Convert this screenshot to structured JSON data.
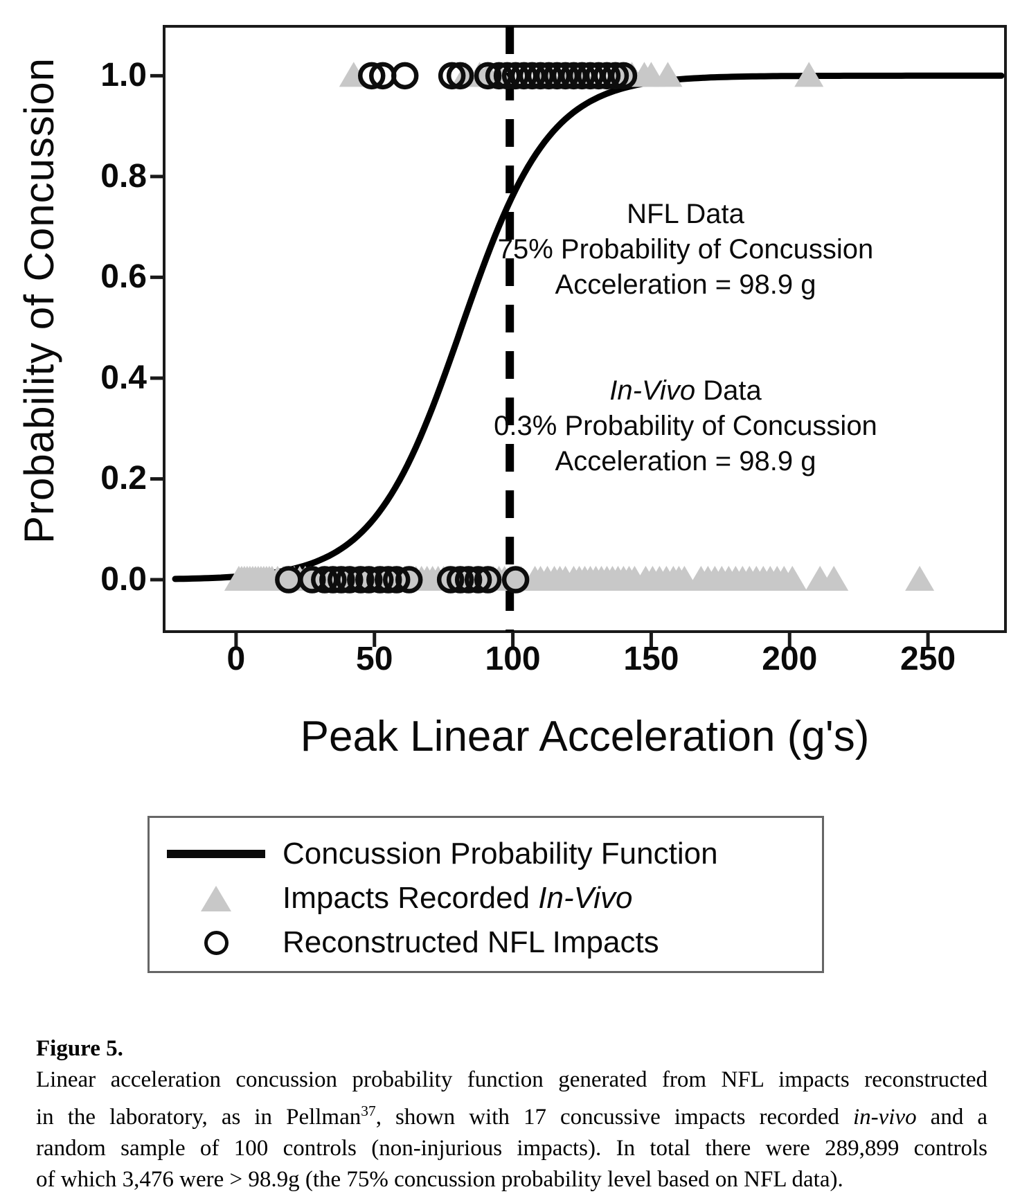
{
  "chart_data": {
    "type": "scatter",
    "xlabel": "Peak Linear Acceleration (g's)",
    "ylabel": "Probability of Concussion",
    "xlim": [
      -26,
      278
    ],
    "ylim": [
      -0.103,
      1.098
    ],
    "x_ticks": [
      0,
      50,
      100,
      150,
      200,
      250
    ],
    "y_ticks": [
      {
        "v": 1.0,
        "label": "1.0"
      },
      {
        "v": 0.8,
        "label": "0.8"
      },
      {
        "v": 0.6,
        "label": "0.6"
      },
      {
        "v": 0.4,
        "label": "0.4"
      },
      {
        "v": 0.2,
        "label": "0.2"
      },
      {
        "v": 0.0,
        "label": "0.0"
      }
    ],
    "grid": false,
    "reference_line": {
      "x_g": 98.9,
      "style": "dashed-vertical"
    },
    "curve": {
      "label": "Concussion Probability Function",
      "shape": "logistic",
      "midpoint_g": 81.4,
      "k": 0.0628,
      "stated_point": "75% probability at 98.9 g"
    },
    "series": [
      {
        "name": "Impacts Recorded In-Vivo",
        "marker": "triangle",
        "color": "#c8c8c8",
        "concussion_g": [
          42.5,
          83,
          88,
          91,
          95,
          111,
          113,
          120,
          123,
          125,
          138,
          141,
          143,
          147.5,
          150,
          156,
          207
        ],
        "no_concussion_g": [
          1,
          2,
          3,
          4,
          5,
          6,
          7,
          8,
          9,
          10,
          11,
          12,
          13,
          15,
          17,
          19,
          21,
          23,
          25,
          27,
          29,
          31,
          33,
          35,
          37,
          39,
          41,
          43,
          45,
          47,
          49,
          51,
          53,
          55,
          57,
          59,
          61,
          63,
          65,
          67,
          69,
          71,
          73,
          75,
          77,
          79,
          81,
          83,
          85,
          87,
          89,
          91,
          93,
          95,
          97,
          99,
          101,
          103,
          108,
          110,
          112.5,
          115,
          117,
          119,
          122,
          124,
          126,
          128,
          130,
          132,
          134,
          136,
          138,
          140,
          142,
          144,
          148,
          150.5,
          153,
          155.5,
          158,
          160,
          162,
          168,
          170.5,
          173,
          175.5,
          178,
          180.5,
          183,
          185.5,
          188,
          190.5,
          193,
          195.5,
          198,
          201,
          211,
          216,
          247
        ]
      },
      {
        "name": "Reconstructed NFL Impacts",
        "marker": "circle",
        "color": "#0d0d0d",
        "concussion_g": [
          49,
          53,
          61,
          78,
          81,
          91,
          95,
          98,
          101,
          104,
          107,
          110,
          113,
          116,
          119,
          122,
          125,
          128,
          131,
          134,
          137,
          140
        ],
        "no_concussion_g": [
          19,
          27.5,
          32,
          35,
          38,
          41,
          45,
          48,
          52,
          55,
          58,
          62.5,
          77.5,
          81,
          84,
          87.5,
          91,
          101
        ]
      }
    ],
    "annotations": [
      {
        "title_italic": "",
        "title_rest": "NFL Data",
        "line2": "75% Probability of Concussion",
        "line3": "Acceleration = 98.9 g"
      },
      {
        "title_italic": "In-Vivo",
        "title_rest": " Data",
        "line2": "0.3% Probability of Concussion",
        "line3": "Acceleration = 98.9 g"
      }
    ]
  },
  "legend": {
    "items": [
      {
        "symbol": "line",
        "label_prefix": "Concussion Probability Function",
        "label_italic": ""
      },
      {
        "symbol": "triangle",
        "label_prefix": "Impacts Recorded ",
        "label_italic": "In-Vivo"
      },
      {
        "symbol": "circle",
        "label_prefix": "Reconstructed NFL Impacts",
        "label_italic": ""
      }
    ]
  },
  "caption": {
    "label": "Figure 5.",
    "lines": [
      {
        "segs": [
          {
            "t": "Linear acceleration concussion probability function generated from NFL impacts reconstructed",
            "s": "n"
          }
        ]
      },
      {
        "segs": [
          {
            "t": "in the laboratory, as in Pellman",
            "s": "n"
          },
          {
            "t": "37",
            "s": "sup"
          },
          {
            "t": ", shown with 17 concussive impacts recorded ",
            "s": "n"
          },
          {
            "t": "in-vivo",
            "s": "i"
          },
          {
            "t": " and a",
            "s": "n"
          }
        ]
      },
      {
        "segs": [
          {
            "t": "random sample of 100 controls (non-injurious impacts). In total there were 289,899 controls",
            "s": "n"
          }
        ]
      },
      {
        "segs": [
          {
            "t": "of which 3,476 were > 98.9g (the 75% concussion probability level based on NFL data).",
            "s": "n"
          }
        ]
      }
    ]
  },
  "colors": {
    "curve": "#000000",
    "axis": "#1a1a1a",
    "triangle_fill": "#c8c8c8",
    "circle_stroke": "#0d0d0d",
    "legend_border": "#666666",
    "text": "#000000"
  }
}
